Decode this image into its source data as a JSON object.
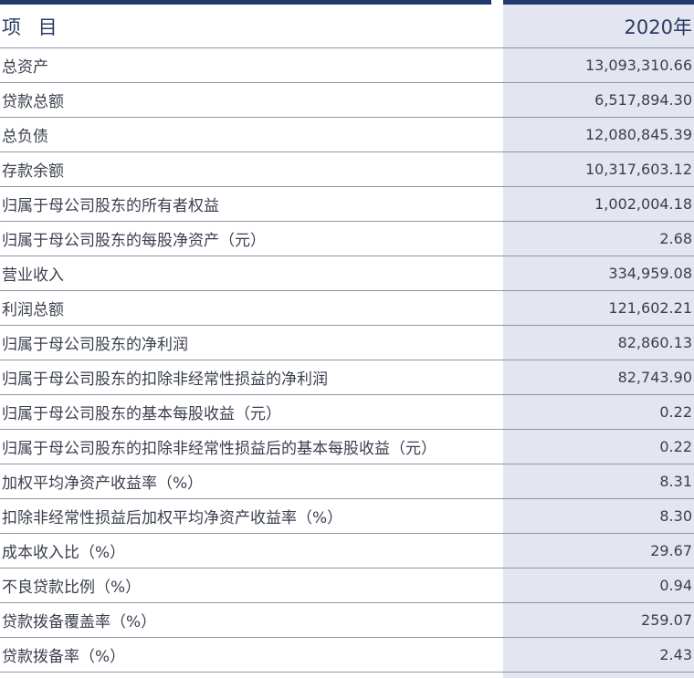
{
  "header": {
    "item_label": "项 目",
    "year_label": "2020年"
  },
  "rows": [
    {
      "label": "总资产",
      "value": "13,093,310.66"
    },
    {
      "label": "贷款总额",
      "value": "6,517,894.30"
    },
    {
      "label": "总负债",
      "value": "12,080,845.39"
    },
    {
      "label": "存款余额",
      "value": "10,317,603.12"
    },
    {
      "label": "归属于母公司股东的所有者权益",
      "value": "1,002,004.18"
    },
    {
      "label": "归属于母公司股东的每股净资产（元）",
      "value": "2.68"
    },
    {
      "label": "营业收入",
      "value": "334,959.08"
    },
    {
      "label": "利润总额",
      "value": "121,602.21"
    },
    {
      "label": "归属于母公司股东的净利润",
      "value": "82,860.13"
    },
    {
      "label": "归属于母公司股东的扣除非经常性损益的净利润",
      "value": "82,743.90"
    },
    {
      "label": "归属于母公司股东的基本每股收益（元）",
      "value": "0.22"
    },
    {
      "label": "归属于母公司股东的扣除非经常性损益后的基本每股收益（元）",
      "value": "0.22"
    },
    {
      "label": "加权平均净资产收益率（%）",
      "value": "8.31"
    },
    {
      "label": "扣除非经常性损益后加权平均净资产收益率（%）",
      "value": "8.30"
    },
    {
      "label": "成本收入比（%）",
      "value": "29.67"
    },
    {
      "label": "不良贷款比例（%）",
      "value": "0.94"
    },
    {
      "label": "贷款拨备覆盖率（%）",
      "value": "259.07"
    },
    {
      "label": "贷款拨备率（%）",
      "value": "2.43"
    }
  ],
  "colors": {
    "header_bar": "#203a6b",
    "value_column_bg": "#e3e6f0"
  }
}
